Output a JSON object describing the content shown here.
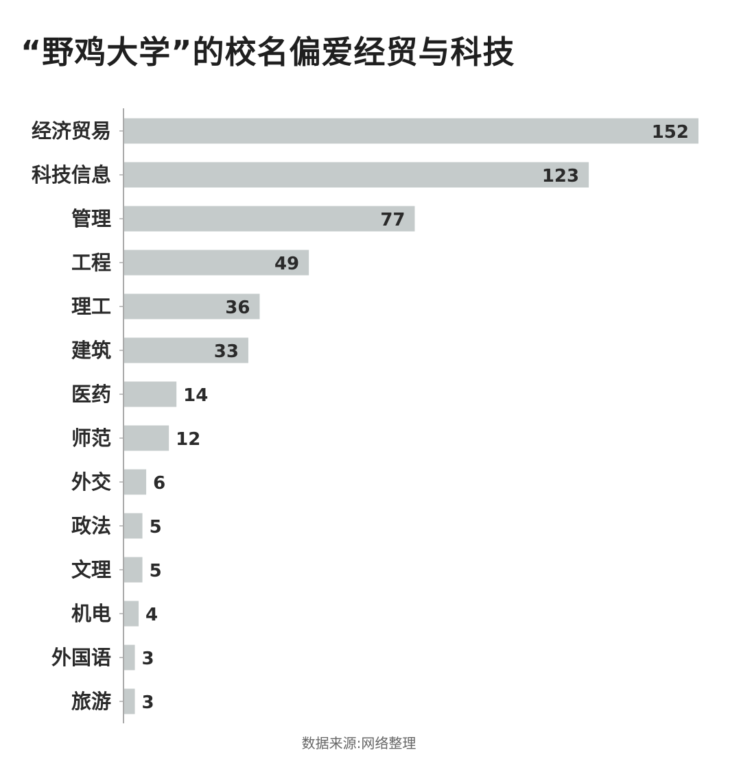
{
  "chart_data": {
    "type": "bar",
    "orientation": "horizontal",
    "title": "“野鸡大学”的校名偏爱经贸与科技",
    "categories": [
      "经济贸易",
      "科技信息",
      "管理",
      "工程",
      "理工",
      "建筑",
      "医药",
      "师范",
      "外交",
      "政法",
      "文理",
      "机电",
      "外国语",
      "旅游"
    ],
    "values": [
      152,
      123,
      77,
      49,
      36,
      33,
      14,
      12,
      6,
      5,
      5,
      4,
      3,
      3
    ],
    "xlim": [
      0,
      152
    ],
    "grid": false,
    "legend": "none",
    "bar_color": "#c5cbcb",
    "axis_color": "#aaaaaa",
    "source": "数据来源:网络整理"
  }
}
